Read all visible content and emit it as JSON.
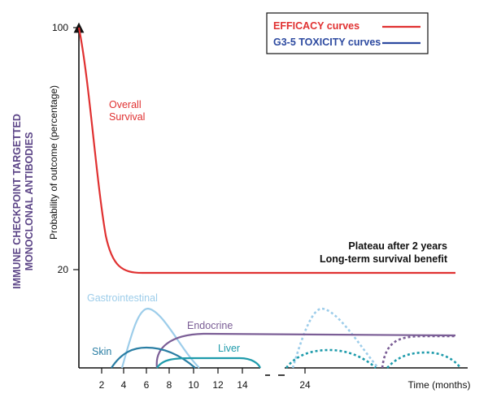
{
  "chart_data": {
    "type": "line",
    "side_title": [
      "IMMUNE CHECKPOINT TARGETTED",
      "MONOCLONAL ANTIBODIES"
    ],
    "ylabel": "Probability of outcome (percentage)",
    "xlabel": "Time (months)",
    "y_ticks": [
      "100",
      "20"
    ],
    "x_ticks": [
      "2",
      "4",
      "6",
      "8",
      "10",
      "12",
      "14",
      "24"
    ],
    "legend": [
      {
        "label": "EFFICACY curves",
        "color": "#e03131"
      },
      {
        "label": "G3-5 TOXICITY curves",
        "color": "#2d4aa0"
      }
    ],
    "annotations": {
      "overall_survival": [
        "Overall",
        "Survival"
      ],
      "plateau": [
        "Plateau after 2 years",
        "Long-term survival benefit"
      ]
    },
    "series": [
      {
        "name": "Overall Survival",
        "color": "#e03131"
      },
      {
        "name": "Gastrointestinal",
        "color": "#9dcdea"
      },
      {
        "name": "Endocrine",
        "color": "#7b5e96"
      },
      {
        "name": "Skin",
        "color": "#2a7ea4"
      },
      {
        "name": "Liver",
        "color": "#1e9bab"
      }
    ],
    "colors": {
      "efficacy": "#e03131",
      "toxicity": "#2d4aa0",
      "side_title": "#5c4587",
      "gastrointestinal": "#9dcdea",
      "endocrine": "#7b5e96",
      "skin": "#2a7ea4",
      "liver": "#1e9bab"
    }
  }
}
